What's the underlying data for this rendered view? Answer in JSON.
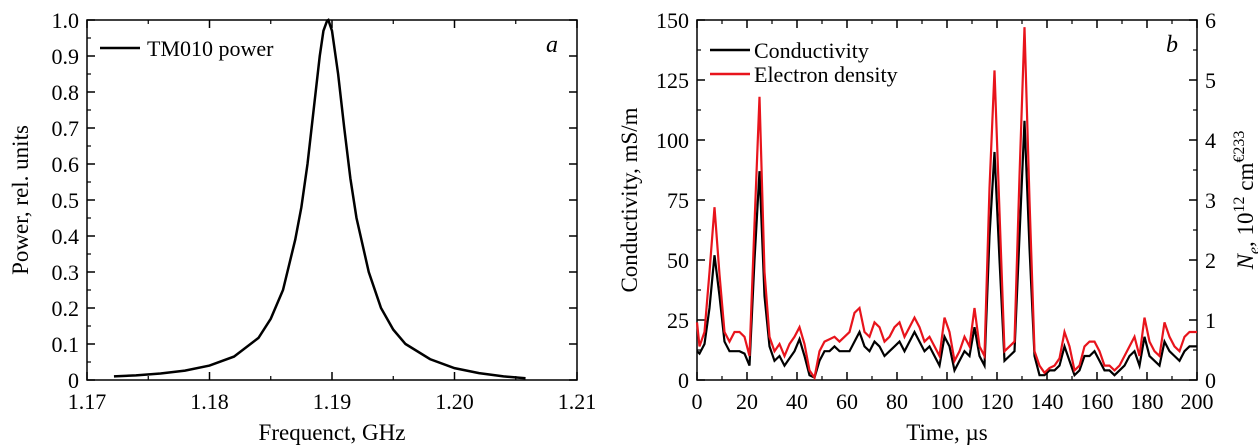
{
  "chart_data": [
    {
      "panel_label": "a",
      "type": "line",
      "xlabel": "Frequenct, GHz",
      "ylabel": "Power, rel. units",
      "xlim": [
        1.17,
        1.21
      ],
      "ylim": [
        0,
        1.0
      ],
      "xticks": [
        "1.17",
        "1.18",
        "1.19",
        "1.20",
        "1.21"
      ],
      "yticks": [
        "0",
        "0.1",
        "0.2",
        "0.3",
        "0.4",
        "0.5",
        "0.6",
        "0.7",
        "0.8",
        "0.9",
        "1.0"
      ],
      "legend_position": "top-left",
      "series": [
        {
          "name": "TM010 power",
          "color": "#000000",
          "x": [
            1.1722,
            1.174,
            1.176,
            1.178,
            1.18,
            1.182,
            1.184,
            1.185,
            1.186,
            1.187,
            1.1875,
            1.188,
            1.1885,
            1.189,
            1.1893,
            1.1896,
            1.1897,
            1.19,
            1.1905,
            1.191,
            1.1915,
            1.192,
            1.193,
            1.194,
            1.195,
            1.196,
            1.198,
            1.2,
            1.202,
            1.204,
            1.2058
          ],
          "y": [
            0.01,
            0.013,
            0.018,
            0.026,
            0.04,
            0.065,
            0.117,
            0.17,
            0.25,
            0.39,
            0.48,
            0.6,
            0.75,
            0.9,
            0.97,
            0.998,
            1.0,
            0.97,
            0.85,
            0.7,
            0.56,
            0.45,
            0.3,
            0.2,
            0.14,
            0.1,
            0.058,
            0.033,
            0.019,
            0.01,
            0.005
          ]
        }
      ]
    },
    {
      "panel_label": "b",
      "type": "line",
      "xlabel": "Time, µs",
      "ylabel": "Conductivity, mS/m",
      "y2label_main": "N",
      "y2label_sub": "e",
      "y2label_rest": ", 10",
      "y2label_sup": "12",
      "y2label_unit": " cm",
      "y2label_unit_sup": "€233",
      "xlim": [
        0,
        200
      ],
      "ylim": [
        0,
        150
      ],
      "y2lim": [
        0,
        6
      ],
      "xticks": [
        "0",
        "20",
        "40",
        "60",
        "80",
        "100",
        "120",
        "140",
        "160",
        "180",
        "200"
      ],
      "yticks": [
        "0",
        "25",
        "50",
        "75",
        "100",
        "125",
        "150"
      ],
      "y2ticks": [
        "0",
        "1",
        "2",
        "3",
        "4",
        "5",
        "6"
      ],
      "legend_position": "top-left",
      "series": [
        {
          "name": "Conductivity",
          "color": "#000000",
          "axis": "left",
          "x": [
            0,
            1,
            3,
            5,
            7,
            9,
            11,
            13,
            15,
            17,
            19,
            21,
            23,
            25,
            27,
            29,
            31,
            33,
            35,
            37,
            39,
            41,
            43,
            45,
            47,
            49,
            51,
            53,
            55,
            57,
            59,
            61,
            63,
            65,
            67,
            69,
            71,
            73,
            75,
            77,
            79,
            81,
            83,
            85,
            87,
            89,
            91,
            93,
            95,
            97,
            99,
            101,
            103,
            105,
            107,
            109,
            111,
            113,
            115,
            117,
            119,
            121,
            123,
            125,
            127,
            129,
            131,
            133,
            135,
            137,
            139,
            141,
            143,
            145,
            147,
            149,
            151,
            153,
            155,
            157,
            159,
            161,
            163,
            165,
            167,
            169,
            171,
            173,
            175,
            177,
            179,
            181,
            183,
            185,
            187,
            189,
            191,
            193,
            195,
            197,
            200
          ],
          "y": [
            12,
            11,
            15,
            30,
            52,
            35,
            16,
            12,
            12,
            12,
            11,
            6,
            50,
            87,
            35,
            14,
            8,
            10,
            6,
            9,
            12,
            17,
            10,
            2,
            1,
            8,
            12,
            12,
            14,
            12,
            12,
            12,
            16,
            20,
            14,
            12,
            16,
            14,
            10,
            12,
            14,
            16,
            12,
            16,
            20,
            16,
            12,
            14,
            10,
            6,
            18,
            14,
            4,
            8,
            12,
            10,
            22,
            10,
            6,
            60,
            95,
            50,
            8,
            10,
            12,
            60,
            108,
            55,
            10,
            2,
            2,
            4,
            4,
            6,
            14,
            8,
            2,
            4,
            10,
            10,
            12,
            8,
            4,
            4,
            2,
            4,
            6,
            10,
            12,
            6,
            18,
            10,
            8,
            6,
            16,
            12,
            10,
            8,
            12,
            14,
            14
          ]
        },
        {
          "name": "Electron density",
          "color": "#e8141c",
          "axis": "left",
          "x": [
            0,
            1,
            3,
            5,
            7,
            9,
            11,
            13,
            15,
            17,
            19,
            21,
            23,
            25,
            27,
            29,
            31,
            33,
            35,
            37,
            39,
            41,
            43,
            45,
            47,
            49,
            51,
            53,
            55,
            57,
            59,
            61,
            63,
            65,
            67,
            69,
            71,
            73,
            75,
            77,
            79,
            81,
            83,
            85,
            87,
            89,
            91,
            93,
            95,
            97,
            99,
            101,
            103,
            105,
            107,
            109,
            111,
            113,
            115,
            117,
            119,
            121,
            123,
            125,
            127,
            129,
            131,
            133,
            135,
            137,
            139,
            141,
            143,
            145,
            147,
            149,
            151,
            153,
            155,
            157,
            159,
            161,
            163,
            165,
            167,
            169,
            171,
            173,
            175,
            177,
            179,
            181,
            183,
            185,
            187,
            189,
            191,
            193,
            195,
            197,
            200
          ],
          "y": [
            24,
            14,
            20,
            45,
            72,
            44,
            20,
            16,
            20,
            20,
            18,
            10,
            65,
            118,
            45,
            18,
            12,
            15,
            10,
            15,
            18,
            22,
            15,
            4,
            1,
            12,
            16,
            17,
            18,
            16,
            18,
            20,
            28,
            30,
            20,
            18,
            24,
            22,
            16,
            18,
            22,
            24,
            18,
            22,
            26,
            22,
            16,
            18,
            14,
            10,
            26,
            20,
            8,
            12,
            18,
            14,
            30,
            14,
            10,
            80,
            129,
            70,
            12,
            14,
            16,
            85,
            147,
            75,
            12,
            6,
            3,
            5,
            6,
            9,
            20,
            14,
            4,
            6,
            14,
            16,
            16,
            12,
            6,
            6,
            4,
            6,
            10,
            14,
            18,
            10,
            26,
            16,
            12,
            10,
            24,
            18,
            14,
            12,
            18,
            20,
            20
          ]
        }
      ]
    }
  ]
}
